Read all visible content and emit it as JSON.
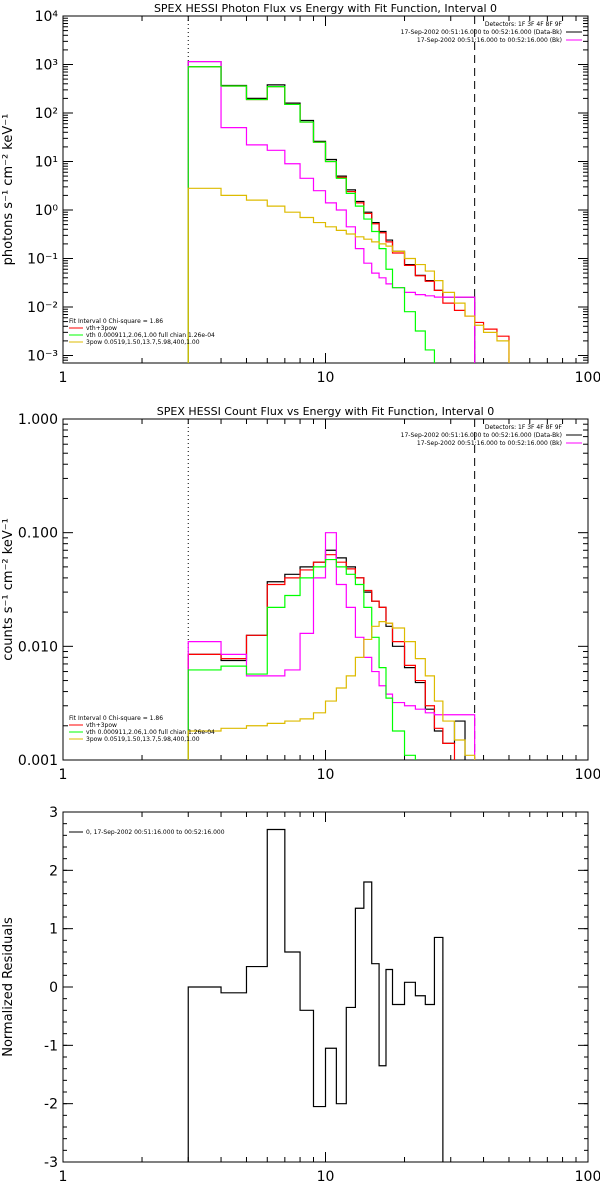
{
  "chart_data": [
    {
      "type": "line",
      "title": "SPEX HESSI Photon Flux vs Energy with Fit Function, Interval 0",
      "ylabel": "photons s⁻¹ cm⁻² keV⁻¹",
      "xscale": "log",
      "yscale": "log",
      "xlim": [
        1,
        100
      ],
      "ylim": [
        0.0007,
        10000
      ],
      "xticks": [
        {
          "v": 1,
          "label": "1"
        },
        {
          "v": 10,
          "label": "10"
        },
        {
          "v": 100,
          "label": "100"
        }
      ],
      "yticks": [
        {
          "v": 0.001,
          "label": "10⁻³"
        },
        {
          "v": 0.01,
          "label": "10⁻²"
        },
        {
          "v": 0.1,
          "label": "10⁻¹"
        },
        {
          "v": 1,
          "label": "10⁰"
        },
        {
          "v": 10,
          "label": "10¹"
        },
        {
          "v": 100,
          "label": "10²"
        },
        {
          "v": 1000,
          "label": "10³"
        },
        {
          "v": 10000,
          "label": "10⁴"
        }
      ],
      "vlines": [
        {
          "x": 3,
          "style": "dotted"
        },
        {
          "x": 37,
          "style": "dashed"
        }
      ],
      "edges": [
        3,
        4,
        5,
        6,
        7,
        8,
        9,
        10,
        11,
        12,
        13,
        14,
        15,
        16,
        17,
        18,
        20,
        22,
        24,
        26,
        28,
        31,
        34,
        37,
        40,
        45,
        50
      ],
      "info_lines": [
        "Detectors: 1F 3F 4F 8F 9F",
        "17-Sep-2002 00:51:16.000 to 00:52:16.000 (Data-Bk)",
        "17-Sep-2002 00:51:16.000 to 00:52:16.000 (Bk)"
      ],
      "legend": [
        "Fit Interval 0   Chi-square = 1.86",
        "vth+3pow",
        "vth 0.000911,2.06,1.00  full chian 1.26e-04",
        "3pow 0.0519,1.50,13.7,5.98,400,1.00"
      ],
      "series": [
        {
          "name": "Data-Bk",
          "color": "#000000",
          "values": [
            1150,
            370,
            200,
            380,
            160,
            70,
            26,
            11,
            5,
            2.6,
            1.5,
            0.9,
            0.55,
            0.36,
            0.24,
            0.14,
            0.075,
            0.045,
            0.035,
            0.022,
            0.016,
            0.016,
            0.016
          ]
        },
        {
          "name": "vth+3pow",
          "color": "#ff0000",
          "values": [
            900,
            360,
            190,
            350,
            150,
            65,
            25,
            10,
            4.7,
            2.4,
            1.4,
            0.85,
            0.52,
            0.34,
            0.22,
            0.13,
            0.072,
            0.044,
            0.034,
            0.022,
            0.012,
            0.0085,
            0.0065,
            0.0048,
            0.0035,
            0.0025
          ]
        },
        {
          "name": "Bk",
          "color": "#ff00ff",
          "values": [
            1150,
            50,
            22,
            17,
            9,
            4.5,
            2.5,
            1.4,
            1.0,
            0.45,
            0.16,
            0.08,
            0.05,
            0.04,
            0.03,
            0.025,
            0.02,
            0.018,
            0.017,
            0.016,
            0.016,
            0.016,
            0.016
          ]
        },
        {
          "name": "vth",
          "color": "#00ff00",
          "values": [
            900,
            360,
            190,
            350,
            150,
            65,
            25,
            10,
            4.5,
            2.2,
            1.2,
            0.65,
            0.36,
            0.16,
            0.06,
            0.025,
            0.008,
            0.0032,
            0.0013
          ]
        },
        {
          "name": "3pow",
          "color": "#ddbb00",
          "values": [
            2.8,
            2.0,
            1.6,
            1.2,
            0.9,
            0.7,
            0.55,
            0.45,
            0.38,
            0.32,
            0.28,
            0.25,
            0.22,
            0.2,
            0.18,
            0.14,
            0.1,
            0.075,
            0.055,
            0.035,
            0.02,
            0.012,
            0.0065,
            0.0042,
            0.003,
            0.002
          ]
        }
      ]
    },
    {
      "type": "line",
      "title": "SPEX HESSI Count Flux vs Energy with Fit Function, Interval 0",
      "ylabel": "counts s⁻¹ cm⁻² keV⁻¹",
      "xscale": "log",
      "yscale": "log",
      "xlim": [
        1,
        100
      ],
      "ylim": [
        0.001,
        1
      ],
      "xticks": [
        {
          "v": 1,
          "label": "1"
        },
        {
          "v": 10,
          "label": "10"
        },
        {
          "v": 100,
          "label": "100"
        }
      ],
      "yticks": [
        {
          "v": 0.001,
          "label": "0.001"
        },
        {
          "v": 0.01,
          "label": "0.010"
        },
        {
          "v": 0.1,
          "label": "0.100"
        },
        {
          "v": 1,
          "label": "1.000"
        }
      ],
      "vlines": [
        {
          "x": 3,
          "style": "dotted"
        },
        {
          "x": 37,
          "style": "dashed"
        }
      ],
      "edges": [
        3,
        4,
        5,
        6,
        7,
        8,
        9,
        10,
        11,
        12,
        13,
        14,
        15,
        16,
        17,
        18,
        20,
        22,
        24,
        26,
        28,
        31,
        34,
        37
      ],
      "info_lines": [
        "Detectors: 1F 3F 4F 8F 9F",
        "17-Sep-2002 00:51:16.000 to 00:52:16.000 (Data-Bk)",
        "17-Sep-2002 00:51:16.000 to 00:52:16.000 (Bk)"
      ],
      "legend": [
        "Fit Interval 0   Chi-square = 1.86",
        "vth+3pow",
        "vth 0.000911,2.06,1.00  full chian 1.26e-04",
        "3pow 0.0519,1.50,13.7,5.98,400,1.00"
      ],
      "series": [
        {
          "name": "Data-Bk",
          "color": "#000000",
          "values": [
            0.0085,
            0.0075,
            0.0125,
            0.037,
            0.043,
            0.05,
            0.055,
            0.07,
            0.06,
            0.05,
            0.04,
            0.03,
            0.025,
            0.022,
            0.015,
            0.01,
            0.0065,
            0.0048,
            0.0028,
            0.0018,
            0.0014,
            0.0022
          ]
        },
        {
          "name": "vth+3pow",
          "color": "#ff0000",
          "values": [
            0.0085,
            0.0078,
            0.0125,
            0.035,
            0.04,
            0.047,
            0.055,
            0.064,
            0.055,
            0.048,
            0.04,
            0.031,
            0.025,
            0.022,
            0.016,
            0.011,
            0.0068,
            0.005,
            0.003,
            0.0019,
            0.0014
          ]
        },
        {
          "name": "Bk",
          "color": "#ff00ff",
          "values": [
            0.011,
            0.0085,
            0.0055,
            0.0055,
            0.0062,
            0.013,
            0.04,
            0.1,
            0.035,
            0.022,
            0.012,
            0.008,
            0.006,
            0.0045,
            0.0038,
            0.0032,
            0.003,
            0.0028,
            0.0026,
            0.0025,
            0.0025,
            0.0025,
            0.0025
          ]
        },
        {
          "name": "vth",
          "color": "#00ff00",
          "values": [
            0.0062,
            0.0067,
            0.0057,
            0.022,
            0.028,
            0.04,
            0.05,
            0.058,
            0.05,
            0.043,
            0.035,
            0.022,
            0.012,
            0.0065,
            0.0035,
            0.0018,
            0.0011
          ]
        },
        {
          "name": "3pow",
          "color": "#ddbb00",
          "values": [
            0.0018,
            0.0019,
            0.002,
            0.0021,
            0.0022,
            0.0023,
            0.0026,
            0.0033,
            0.0043,
            0.0055,
            0.008,
            0.0115,
            0.015,
            0.0165,
            0.016,
            0.0145,
            0.011,
            0.0078,
            0.0055,
            0.0033,
            0.0022,
            0.0015,
            0.0011
          ]
        }
      ]
    },
    {
      "type": "line",
      "title": "",
      "ylabel": "Normalized Residuals",
      "xscale": "log",
      "yscale": "linear",
      "xlim": [
        1,
        100
      ],
      "ylim": [
        -3,
        3
      ],
      "xticks": [
        {
          "v": 1,
          "label": "1"
        },
        {
          "v": 10,
          "label": "10"
        },
        {
          "v": 100,
          "label": "100"
        }
      ],
      "yticks": [
        {
          "v": -3,
          "label": "-3"
        },
        {
          "v": -2,
          "label": "-2"
        },
        {
          "v": -1,
          "label": "-1"
        },
        {
          "v": 0,
          "label": "0"
        },
        {
          "v": 1,
          "label": "1"
        },
        {
          "v": 2,
          "label": "2"
        },
        {
          "v": 3,
          "label": "3"
        }
      ],
      "vlines": [],
      "edges": [
        3,
        4,
        5,
        6,
        7,
        8,
        9,
        10,
        11,
        12,
        13,
        14,
        15,
        16,
        17,
        18,
        20,
        22,
        24,
        26,
        28,
        31,
        34,
        37
      ],
      "info_lines": [],
      "legend_line": "0, 17-Sep-2002 00:51:16.000 to 00:52:16.000",
      "series": [
        {
          "name": "residuals",
          "color": "#000000",
          "values": [
            0.0,
            -0.1,
            0.35,
            2.7,
            0.6,
            -0.4,
            -2.05,
            -1.05,
            -2.0,
            -0.35,
            1.35,
            1.8,
            0.4,
            -1.35,
            0.3,
            -0.3,
            0.08,
            -0.15,
            -0.3,
            0.85
          ]
        }
      ]
    }
  ]
}
